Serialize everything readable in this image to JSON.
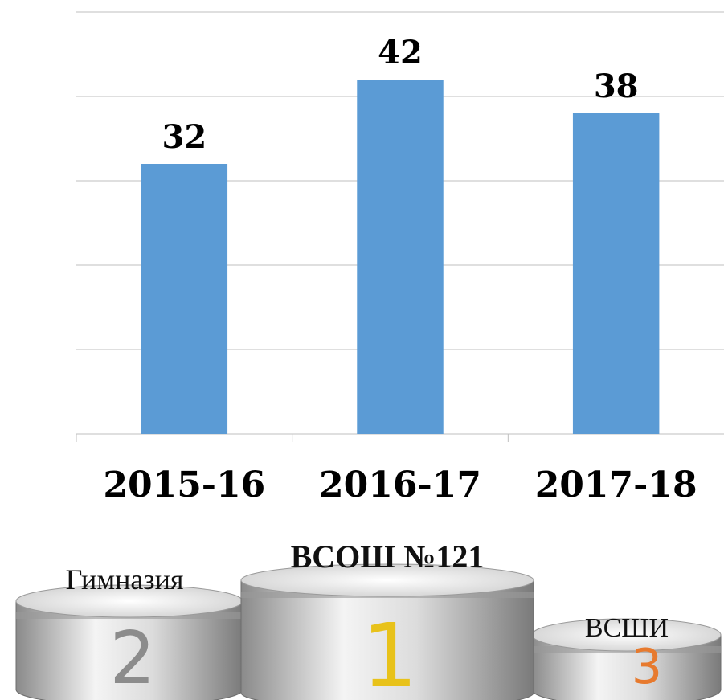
{
  "chart_data": {
    "type": "bar",
    "categories": [
      "2015-16",
      "2016-17",
      "2017-18"
    ],
    "values": [
      32,
      42,
      38
    ],
    "color": "#5b9bd5",
    "ylim": [
      0,
      50
    ],
    "yticks": [
      0,
      10,
      20,
      30,
      40,
      50
    ],
    "grid": true
  },
  "podium": [
    {
      "label": "Гимназия",
      "place": "2"
    },
    {
      "label": "ВСОШ №121",
      "place": "1"
    },
    {
      "label": "ВСШИ",
      "place": "3"
    }
  ]
}
